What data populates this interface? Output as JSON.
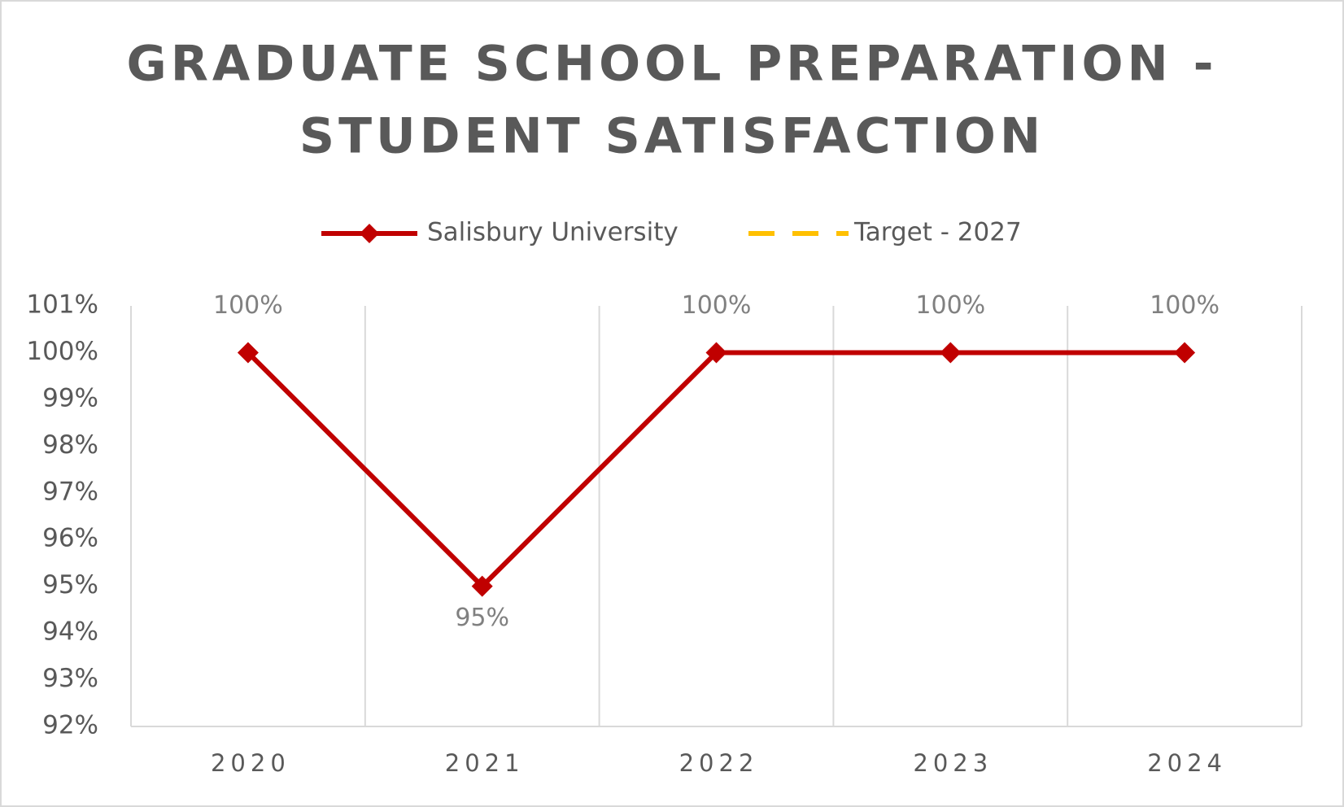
{
  "chart_data": {
    "type": "line",
    "title": "GRADUATE SCHOOL PREPARATION - STUDENT SATISFACTION",
    "categories": [
      "2020",
      "2021",
      "2022",
      "2023",
      "2024"
    ],
    "series": [
      {
        "name": "Salisbury University",
        "color": "#c00000",
        "values": [
          100,
          95,
          100,
          100,
          100
        ],
        "value_labels": [
          "100%",
          "95%",
          "100%",
          "100%",
          "100%"
        ]
      },
      {
        "name": "Target - 2027",
        "color": "#ffc000",
        "values": [
          null,
          null,
          null,
          null,
          null
        ]
      }
    ],
    "ylim": [
      92,
      101
    ],
    "yticks": [
      {
        "value": 92,
        "label": "92%"
      },
      {
        "value": 93,
        "label": "93%"
      },
      {
        "value": 94,
        "label": "94%"
      },
      {
        "value": 95,
        "label": "95%"
      },
      {
        "value": 96,
        "label": "96%"
      },
      {
        "value": 97,
        "label": "97%"
      },
      {
        "value": 98,
        "label": "98%"
      },
      {
        "value": 99,
        "label": "99%"
      },
      {
        "value": 100,
        "label": "100%"
      },
      {
        "value": 101,
        "label": "101%"
      }
    ],
    "grid": true,
    "legend": "top"
  }
}
